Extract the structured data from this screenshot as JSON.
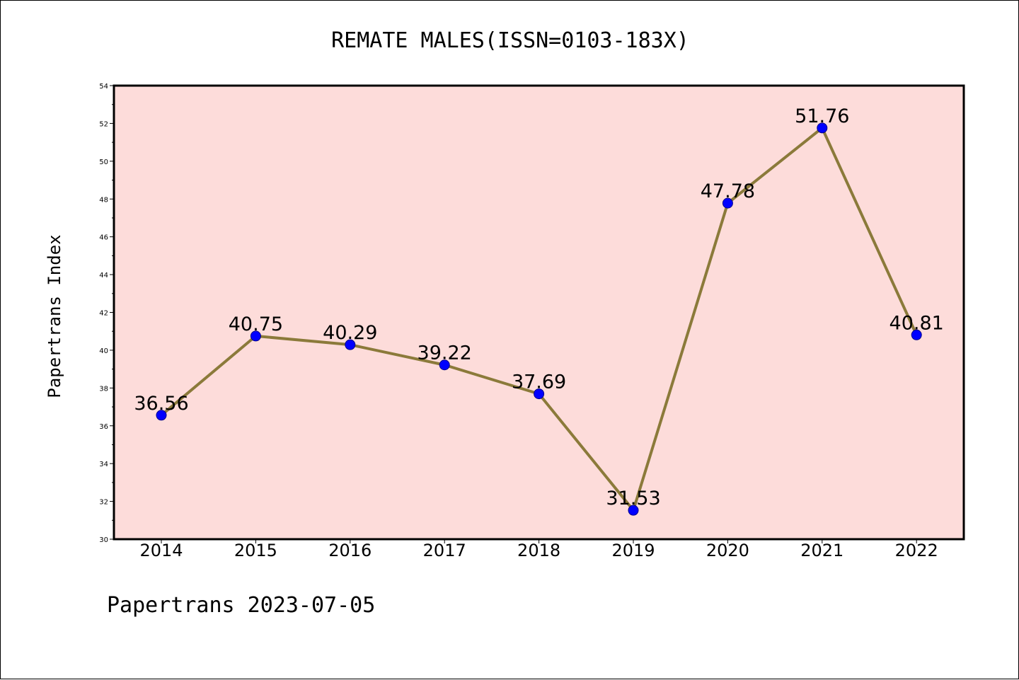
{
  "footer": "Papertrans 2023-07-05",
  "colors": {
    "plot_background": "#FDDCDA",
    "line": "#8B7A3A",
    "marker": "#0000FF"
  },
  "chart_data": {
    "type": "line",
    "title": "REMATE MALES(ISSN=0103-183X)",
    "xlabel": "",
    "ylabel": "Papertrans Index",
    "x": [
      "2014",
      "2015",
      "2016",
      "2017",
      "2018",
      "2019",
      "2020",
      "2021",
      "2022"
    ],
    "values": [
      36.56,
      40.75,
      40.29,
      39.22,
      37.69,
      31.53,
      47.78,
      51.76,
      40.81
    ],
    "data_labels": [
      "36.56",
      "40.75",
      "40.29",
      "39.22",
      "37.69",
      "31.53",
      "47.78",
      "51.76",
      "40.81"
    ],
    "ylim": [
      30,
      54
    ],
    "yticks": [
      30,
      32,
      34,
      36,
      38,
      40,
      42,
      44,
      46,
      48,
      50,
      52,
      54
    ],
    "grid": false,
    "legend": "none"
  }
}
